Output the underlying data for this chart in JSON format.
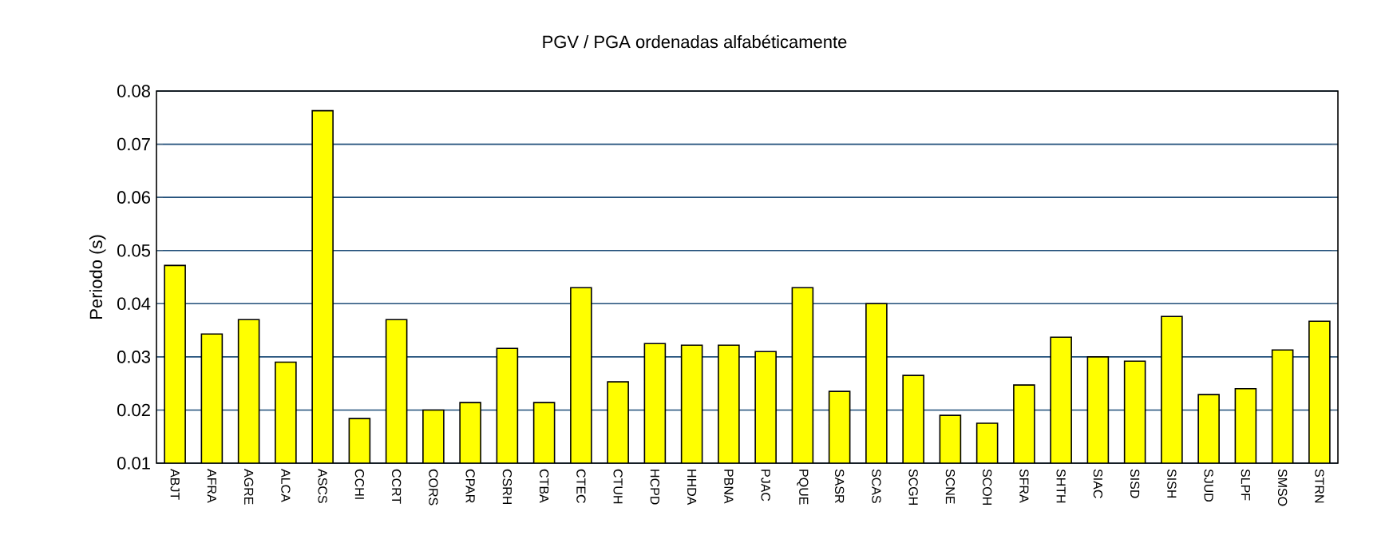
{
  "chart_data": {
    "type": "bar",
    "title": "PGV / PGA ordenadas alfabéticamente",
    "ylabel": "Periodo (s)",
    "categories": [
      "ABJT",
      "AFRA",
      "AGRE",
      "ALCA",
      "ASCS",
      "CCHI",
      "CCRT",
      "CORS",
      "CPAR",
      "CSRH",
      "CTBA",
      "CTEC",
      "CTUH",
      "HCPD",
      "HHDA",
      "PBNA",
      "PJAC",
      "PQUE",
      "SASR",
      "SCAS",
      "SCGH",
      "SCNE",
      "SCOH",
      "SFRA",
      "SHTH",
      "SIAC",
      "SISD",
      "SISH",
      "SJUD",
      "SLPF",
      "SMSO",
      "STRN"
    ],
    "values": [
      0.0472,
      0.0343,
      0.037,
      0.029,
      0.0763,
      0.0184,
      0.037,
      0.02,
      0.0214,
      0.0316,
      0.0214,
      0.043,
      0.0253,
      0.0325,
      0.0322,
      0.0322,
      0.031,
      0.043,
      0.0235,
      0.04,
      0.0265,
      0.019,
      0.0175,
      0.0247,
      0.0337,
      0.03,
      0.0292,
      0.0376,
      0.0229,
      0.024,
      0.0313,
      0.0367
    ],
    "color": "#ffff00",
    "ylim": [
      0.01,
      0.08
    ],
    "yticks": [
      0.01,
      0.02,
      0.03,
      0.04,
      0.05,
      0.06,
      0.07,
      0.08
    ],
    "grid": "y"
  }
}
